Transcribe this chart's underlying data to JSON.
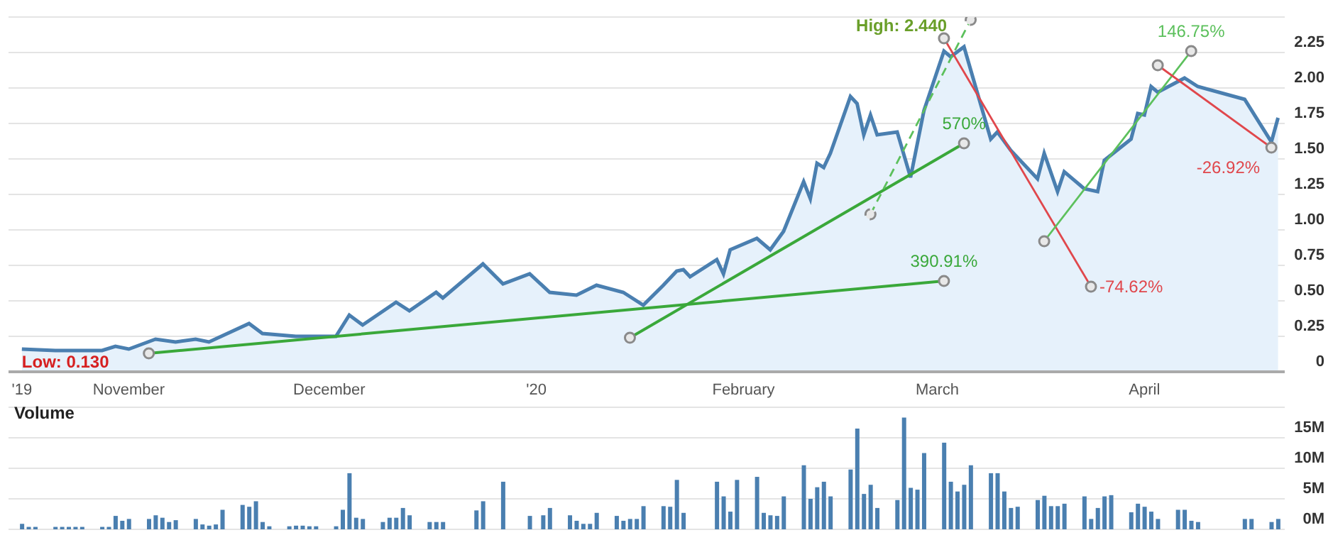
{
  "chart_data": [
    {
      "type": "area",
      "x": [
        "2019-10-16",
        "2019-10-21",
        "2019-10-28",
        "2019-10-30",
        "2019-11-01",
        "2019-11-05",
        "2019-11-08",
        "2019-11-11",
        "2019-11-13",
        "2019-11-19",
        "2019-11-21",
        "2019-11-26",
        "2019-12-02",
        "2019-12-04",
        "2019-12-06",
        "2019-12-11",
        "2019-12-13",
        "2019-12-17",
        "2019-12-18",
        "2019-12-24",
        "2019-12-27",
        "2019-12-31",
        "2020-01-03",
        "2020-01-07",
        "2020-01-10",
        "2020-01-14",
        "2020-01-17",
        "2020-01-20",
        "2020-01-22",
        "2020-01-23",
        "2020-01-24",
        "2020-01-28",
        "2020-01-29",
        "2020-01-30",
        "2020-02-03",
        "2020-02-05",
        "2020-02-07",
        "2020-02-10",
        "2020-02-11",
        "2020-02-12",
        "2020-02-13",
        "2020-02-14",
        "2020-02-17",
        "2020-02-18",
        "2020-02-19",
        "2020-02-20",
        "2020-02-21",
        "2020-02-24",
        "2020-02-26",
        "2020-02-28",
        "2020-03-02",
        "2020-03-03",
        "2020-03-05",
        "2020-03-09",
        "2020-03-10",
        "2020-03-12",
        "2020-03-16",
        "2020-03-17",
        "2020-03-19",
        "2020-03-20",
        "2020-03-23",
        "2020-03-25",
        "2020-03-26",
        "2020-03-30",
        "2020-03-31",
        "2020-04-01",
        "2020-04-02",
        "2020-04-03",
        "2020-04-07",
        "2020-04-09",
        "2020-04-16",
        "2020-04-20",
        "2020-04-21"
      ],
      "series": [
        {
          "color": "#4a7fb0",
          "values": [
            0.16,
            0.15,
            0.15,
            0.18,
            0.16,
            0.23,
            0.21,
            0.23,
            0.21,
            0.34,
            0.27,
            0.25,
            0.25,
            0.4,
            0.33,
            0.49,
            0.43,
            0.56,
            0.52,
            0.76,
            0.62,
            0.69,
            0.56,
            0.54,
            0.61,
            0.56,
            0.47,
            0.61,
            0.71,
            0.72,
            0.67,
            0.79,
            0.69,
            0.86,
            0.94,
            0.86,
            0.99,
            1.34,
            1.22,
            1.47,
            1.44,
            1.54,
            1.94,
            1.89,
            1.67,
            1.81,
            1.67,
            1.69,
            1.37,
            1.84,
            2.26,
            2.22,
            2.29,
            1.64,
            1.69,
            1.56,
            1.36,
            1.54,
            1.27,
            1.41,
            1.29,
            1.27,
            1.49,
            1.64,
            1.82,
            1.81,
            2.01,
            1.97,
            2.07,
            2.01,
            1.92,
            1.62,
            1.79
          ]
        },
        {
          "type": "line",
          "name": "390.91%",
          "color": "#3aa83a",
          "marker": "circle",
          "x": [
            "2019-11-04",
            "2020-03-02"
          ],
          "values": [
            0.13,
            0.64
          ]
        },
        {
          "type": "line",
          "name": "570%",
          "color": "#3aa83a",
          "marker": "circle",
          "x": [
            "2020-01-15",
            "2020-03-05"
          ],
          "values": [
            0.24,
            1.61
          ]
        },
        {
          "type": "line",
          "color": "#5cc05c",
          "marker": "circle",
          "line_style": "dashed",
          "x": [
            "2020-02-20",
            "2020-03-06"
          ],
          "values": [
            1.11,
            2.48
          ]
        },
        {
          "type": "line",
          "name": "-74.62%",
          "color": "#e0474c",
          "marker": "circle",
          "x": [
            "2020-03-02",
            "2020-03-24"
          ],
          "values": [
            2.35,
            0.6
          ]
        },
        {
          "type": "line",
          "name": "146.75%",
          "color": "#5cc05c",
          "marker": "circle",
          "x": [
            "2020-03-17",
            "2020-04-08"
          ],
          "values": [
            0.92,
            2.26
          ]
        },
        {
          "type": "line",
          "name": "-26.92%",
          "color": "#e0474c",
          "marker": "circle",
          "x": [
            "2020-04-03",
            "2020-04-20"
          ],
          "values": [
            2.16,
            1.58
          ]
        }
      ],
      "annotations": [
        {
          "text": "High: 2.440",
          "x": "2020-03-05",
          "y": 2.44
        },
        {
          "text": "Low: 0.130",
          "x": "2019-10-16",
          "y": 0.13
        }
      ],
      "xlim": [
        "2019-10-14",
        "2020-04-22"
      ],
      "xticks": [
        {
          "value": "2019-10-16",
          "label": "'19"
        },
        {
          "value": "2019-11-01",
          "label": "November"
        },
        {
          "value": "2019-12-01",
          "label": "December"
        },
        {
          "value": "2020-01-01",
          "label": "'20"
        },
        {
          "value": "2020-02-01",
          "label": "February"
        },
        {
          "value": "2020-03-01",
          "label": "March"
        },
        {
          "value": "2020-04-01",
          "label": "April"
        }
      ],
      "ylim": [
        0,
        2.5
      ],
      "yticks": [
        0,
        {
          "value": 0.25,
          "label": "0.25"
        },
        {
          "value": 0.5,
          "label": "0.50"
        },
        {
          "value": 0.75,
          "label": "0.75"
        },
        {
          "value": 1,
          "label": "1.00"
        },
        {
          "value": 1.25,
          "label": "1.25"
        },
        {
          "value": 1.5,
          "label": "1.50"
        },
        {
          "value": 1.75,
          "label": "1.75"
        },
        {
          "value": 2,
          "label": "2.00"
        },
        {
          "value": 2.25,
          "label": "2.25"
        },
        {
          "value": 2.5,
          "label": null
        }
      ],
      "grid": "y",
      "legend": false,
      "marker": "none"
    },
    {
      "type": "bar",
      "title": "Volume",
      "x": [
        "2019-10-16",
        "2019-10-17",
        "2019-10-18",
        "2019-10-21",
        "2019-10-22",
        "2019-10-23",
        "2019-10-24",
        "2019-10-25",
        "2019-10-28",
        "2019-10-29",
        "2019-10-30",
        "2019-10-31",
        "2019-11-01",
        "2019-11-04",
        "2019-11-05",
        "2019-11-06",
        "2019-11-07",
        "2019-11-08",
        "2019-11-11",
        "2019-11-12",
        "2019-11-13",
        "2019-11-14",
        "2019-11-15",
        "2019-11-18",
        "2019-11-19",
        "2019-11-20",
        "2019-11-21",
        "2019-11-22",
        "2019-11-25",
        "2019-11-26",
        "2019-11-27",
        "2019-11-28",
        "2019-11-29",
        "2019-12-02",
        "2019-12-03",
        "2019-12-04",
        "2019-12-05",
        "2019-12-06",
        "2019-12-09",
        "2019-12-10",
        "2019-12-11",
        "2019-12-12",
        "2019-12-13",
        "2019-12-16",
        "2019-12-17",
        "2019-12-18",
        "2019-12-19",
        "2019-12-20",
        "2019-12-23",
        "2019-12-24",
        "2019-12-27",
        "2019-12-30",
        "2019-12-31",
        "2020-01-02",
        "2020-01-03",
        "2020-01-06",
        "2020-01-07",
        "2020-01-08",
        "2020-01-09",
        "2020-01-10",
        "2020-01-13",
        "2020-01-14",
        "2020-01-15",
        "2020-01-16",
        "2020-01-17",
        "2020-01-20",
        "2020-01-21",
        "2020-01-22",
        "2020-01-23",
        "2020-01-24",
        "2020-01-28",
        "2020-01-29",
        "2020-01-30",
        "2020-01-31",
        "2020-02-03",
        "2020-02-04",
        "2020-02-05",
        "2020-02-06",
        "2020-02-07",
        "2020-02-10",
        "2020-02-11",
        "2020-02-12",
        "2020-02-13",
        "2020-02-14",
        "2020-02-17",
        "2020-02-18",
        "2020-02-19",
        "2020-02-20",
        "2020-02-21",
        "2020-02-24",
        "2020-02-25",
        "2020-02-26",
        "2020-02-27",
        "2020-02-28",
        "2020-03-02",
        "2020-03-03",
        "2020-03-04",
        "2020-03-05",
        "2020-03-06",
        "2020-03-09",
        "2020-03-10",
        "2020-03-11",
        "2020-03-12",
        "2020-03-13",
        "2020-03-16",
        "2020-03-17",
        "2020-03-18",
        "2020-03-19",
        "2020-03-20",
        "2020-03-23",
        "2020-03-24",
        "2020-03-25",
        "2020-03-26",
        "2020-03-27",
        "2020-03-30",
        "2020-03-31",
        "2020-04-01",
        "2020-04-02",
        "2020-04-03",
        "2020-04-06",
        "2020-04-07",
        "2020-04-08",
        "2020-04-09",
        "2020-04-14",
        "2020-04-15",
        "2020-04-16",
        "2020-04-17",
        "2020-04-20",
        "2020-04-21"
      ],
      "series": [
        {
          "color": "#4a7fb0",
          "values": [
            0.9,
            0.4,
            0.4,
            0.4,
            0.4,
            0.4,
            0.4,
            0.4,
            0.4,
            0.4,
            2.2,
            1.4,
            1.7,
            1.7,
            2.3,
            1.9,
            1.2,
            1.5,
            1.7,
            0.8,
            0.6,
            0.8,
            3.2,
            4.0,
            3.7,
            4.6,
            1.2,
            0.5,
            0.5,
            0.6,
            0.6,
            0.5,
            0.5,
            0.5,
            3.2,
            9.2,
            1.9,
            1.7,
            1.2,
            1.9,
            1.9,
            3.5,
            2.3,
            1.2,
            1.2,
            1.2,
            null,
            null,
            3.1,
            4.6,
            7.8,
            null,
            2.2,
            2.3,
            3.5,
            2.3,
            1.4,
            0.9,
            0.9,
            2.7,
            2.2,
            1.4,
            1.7,
            1.7,
            3.8,
            3.8,
            3.7,
            8.1,
            2.7,
            null,
            7.8,
            5.4,
            2.9,
            8.1,
            8.6,
            2.7,
            2.3,
            2.2,
            5.4,
            10.5,
            5.0,
            6.9,
            7.8,
            5.4,
            9.8,
            16.5,
            5.8,
            7.3,
            3.5,
            4.8,
            18.3,
            6.8,
            6.5,
            12.5,
            14.2,
            7.8,
            6.2,
            7.3,
            10.5,
            9.2,
            9.2,
            6.2,
            3.5,
            3.7,
            4.8,
            5.5,
            3.8,
            3.8,
            4.2,
            5.4,
            1.7,
            3.5,
            5.4,
            5.6,
            2.8,
            4.2,
            3.7,
            2.9,
            1.7,
            3.2,
            3.2,
            1.4,
            1.2,
            null,
            null,
            1.7,
            1.7,
            1.2,
            1.7
          ]
        }
      ],
      "xlim": [
        "2019-10-14",
        "2020-04-22"
      ],
      "ylim": [
        0,
        20
      ],
      "yticks": [
        {
          "value": 0,
          "label": "0M"
        },
        {
          "value": 5,
          "label": "5M"
        },
        {
          "value": 10,
          "label": "10M"
        },
        {
          "value": 15,
          "label": "15M"
        },
        {
          "value": 20,
          "label": null
        }
      ],
      "grid": "y",
      "legend": false,
      "tick_labels": "y"
    }
  ]
}
